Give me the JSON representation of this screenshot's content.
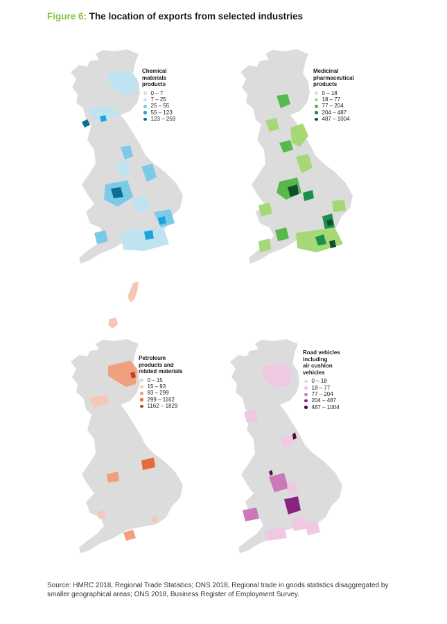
{
  "figure": {
    "number": "Figure 6:",
    "title": "The location of exports from selected industries"
  },
  "colors": {
    "land": "#dcdcdc",
    "accent_green": "#86c440"
  },
  "maps": [
    {
      "id": "chemical",
      "legend_title": "Chemical\nmaterials\nproducts",
      "classes": [
        {
          "range": "0 – 7",
          "color": "#dcdcdc"
        },
        {
          "range": "7 – 25",
          "color": "#bfe3f1"
        },
        {
          "range": "25 – 55",
          "color": "#7ccaea"
        },
        {
          "range": "55 – 123",
          "color": "#1ea3dc"
        },
        {
          "range": "123 – 259",
          "color": "#0b6f93"
        }
      ]
    },
    {
      "id": "medicinal",
      "legend_title": "Medicinal\npharmaceutical\nproducts",
      "classes": [
        {
          "range": "0 – 18",
          "color": "#dcdcdc"
        },
        {
          "range": "18 – 77",
          "color": "#a7d877"
        },
        {
          "range": "77 – 204",
          "color": "#56b94c"
        },
        {
          "range": "204 – 487",
          "color": "#1e8f4b"
        },
        {
          "range": "487 – 1004",
          "color": "#0e4f2e"
        }
      ]
    },
    {
      "id": "petroleum",
      "legend_title": "Petroleum\nproducts and\nrelated materials",
      "classes": [
        {
          "range": "0 – 15",
          "color": "#dcdcdc"
        },
        {
          "range": "15 – 93",
          "color": "#f6c7b6"
        },
        {
          "range": "93 – 299",
          "color": "#f1a07f"
        },
        {
          "range": "299 – 1162",
          "color": "#e46c3c"
        },
        {
          "range": "1162 – 1829",
          "color": "#c4421a"
        }
      ]
    },
    {
      "id": "road",
      "legend_title": "Road vehicles\nincluding\nair cushion\nvehicles",
      "classes": [
        {
          "range": "0 – 18",
          "color": "#dcdcdc"
        },
        {
          "range": "18 – 77",
          "color": "#efc8e2"
        },
        {
          "range": "77 – 204",
          "color": "#cc78b8"
        },
        {
          "range": "204 – 487",
          "color": "#8a2281"
        },
        {
          "range": "487 – 1004",
          "color": "#4e0b4a"
        }
      ]
    }
  ],
  "source": "Source: HMRC 2018, Regional Trade Statistics; ONS 2018, Regional trade in goods statistics disaggregated by smaller geographical areas; ONS 2018, Business Register of Employment Survey."
}
